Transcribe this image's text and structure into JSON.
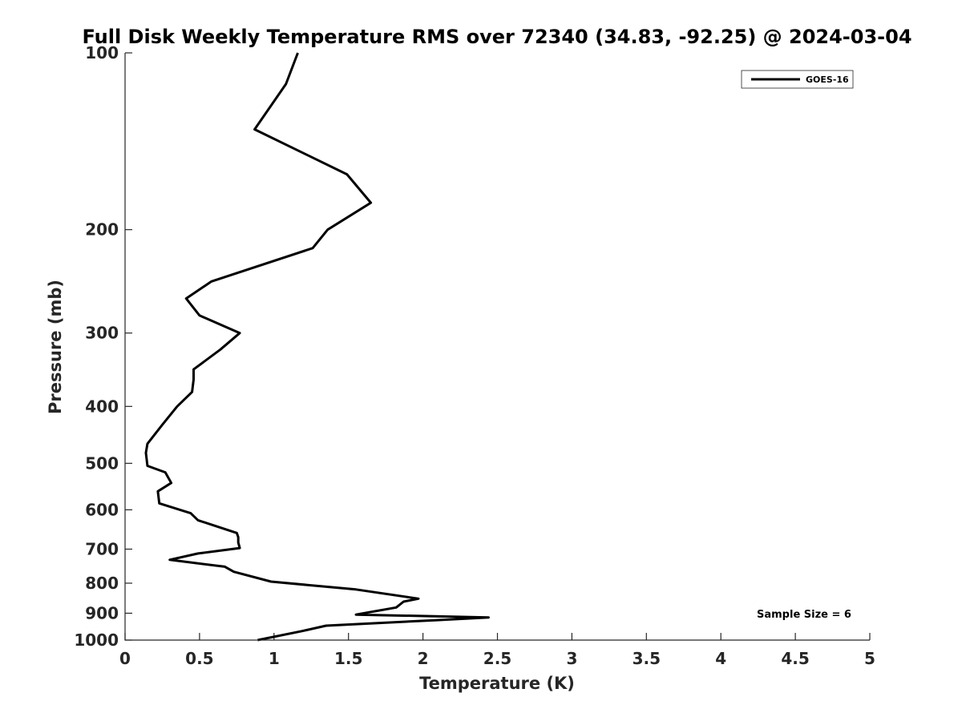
{
  "chart_data": {
    "type": "line",
    "title": "Full Disk Weekly Temperature RMS over 72340 (34.83, -92.25) @ 2024-03-04",
    "xlabel": "Temperature (K)",
    "ylabel": "Pressure (mb)",
    "xlim": [
      0,
      5
    ],
    "ylim": [
      1000,
      100
    ],
    "yscale": "log",
    "xticks": [
      0,
      0.5,
      1,
      1.5,
      2,
      2.5,
      3,
      3.5,
      4,
      4.5,
      5
    ],
    "xtick_labels": [
      "0",
      "0.5",
      "1",
      "1.5",
      "2",
      "2.5",
      "3",
      "3.5",
      "4",
      "4.5",
      "5"
    ],
    "yticks": [
      100,
      200,
      300,
      400,
      500,
      600,
      700,
      800,
      900,
      1000
    ],
    "ytick_labels": [
      "100",
      "200",
      "300",
      "400",
      "500",
      "600",
      "700",
      "800",
      "900",
      "1000"
    ],
    "grid": false,
    "legend_position": "top-right",
    "annotation": "Sample Size = 6",
    "series": [
      {
        "name": "GOES-16",
        "color": "#000000",
        "x": [
          1.16,
          1.08,
          0.87,
          1.49,
          1.65,
          1.36,
          1.26,
          0.58,
          0.41,
          0.5,
          0.77,
          0.64,
          0.46,
          0.46,
          0.45,
          0.35,
          0.25,
          0.15,
          0.14,
          0.15,
          0.27,
          0.31,
          0.22,
          0.23,
          0.44,
          0.49,
          0.75,
          0.76,
          0.76,
          0.77,
          0.49,
          0.3,
          0.67,
          0.73,
          0.98,
          1.55,
          1.97,
          1.87,
          1.82,
          1.55,
          2.44,
          2.08,
          1.35,
          1.19,
          0.89
        ],
        "y": [
          100,
          113,
          135,
          161,
          180,
          200,
          215,
          245,
          262,
          280,
          300,
          320,
          346,
          360,
          378,
          400,
          430,
          463,
          480,
          505,
          518,
          540,
          558,
          585,
          608,
          625,
          657,
          668,
          682,
          697,
          712,
          730,
          750,
          765,
          795,
          820,
          850,
          860,
          880,
          905,
          915,
          925,
          945,
          965,
          1000
        ]
      }
    ]
  }
}
